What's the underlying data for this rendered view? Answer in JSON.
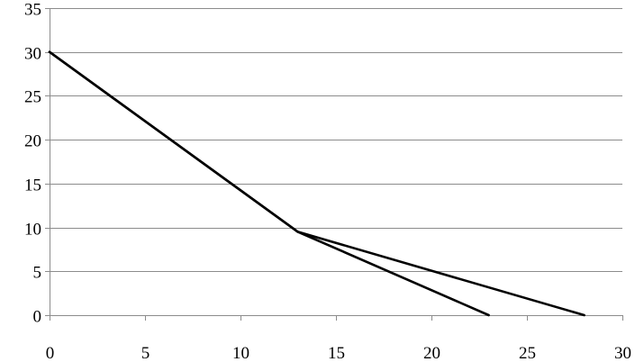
{
  "chart_data": {
    "type": "line",
    "title": "",
    "xlabel": "",
    "ylabel": "",
    "xlim": [
      0,
      30
    ],
    "ylim": [
      0,
      35
    ],
    "xticks": [
      0,
      5,
      10,
      15,
      20,
      25,
      30
    ],
    "yticks": [
      0,
      5,
      10,
      15,
      20,
      25,
      30,
      35
    ],
    "grid": {
      "horizontal": true,
      "vertical": false
    },
    "legend": "none",
    "line_color": "#000000",
    "grid_color": "#8c8c8c",
    "series": [
      {
        "x": [
          0,
          13,
          23
        ],
        "y": [
          30,
          9.5,
          0
        ]
      },
      {
        "x": [
          0,
          13,
          28
        ],
        "y": [
          30,
          9.5,
          0
        ]
      }
    ]
  }
}
